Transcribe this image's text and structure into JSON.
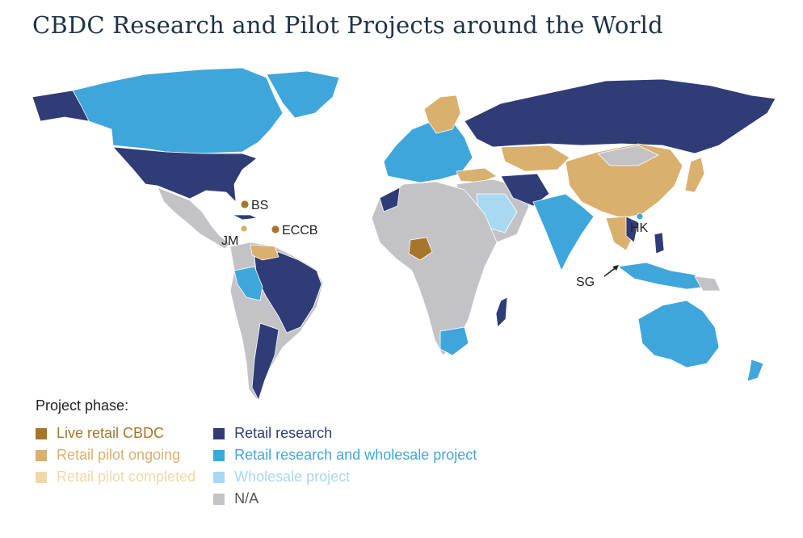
{
  "title": "CBDC Research and Pilot Projects around the World",
  "colors": {
    "live": "#a8762a",
    "pilot_ongoing": "#d9b06d",
    "pilot_completed": "#f0d9a6",
    "retail_research": "#2f3c75",
    "retail_wholesale": "#3fa6dc",
    "wholesale": "#a9d8f1",
    "na": "#c3c3c7"
  },
  "map_labels": {
    "bs": "BS",
    "eccb": "ECCB",
    "jm": "JM",
    "hk": "HK",
    "sg": "SG"
  },
  "legend": {
    "header": "Project phase:",
    "items": [
      {
        "key": "live",
        "label": "Live retail CBDC"
      },
      {
        "key": "pilot_ongoing",
        "label": "Retail pilot ongoing"
      },
      {
        "key": "pilot_completed",
        "label": "Retail pilot completed"
      },
      {
        "key": "retail_research",
        "label": "Retail research"
      },
      {
        "key": "retail_wholesale",
        "label": "Retail research and wholesale project"
      },
      {
        "key": "wholesale",
        "label": "Wholesale project"
      },
      {
        "key": "na",
        "label": "N/A"
      }
    ]
  }
}
